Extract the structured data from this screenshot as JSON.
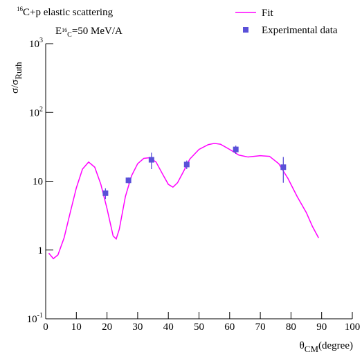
{
  "chart_data": {
    "type": "line",
    "title": {
      "sup": "16",
      "text": "C+p elastic scattering"
    },
    "annotation": {
      "text": "E",
      "sub": "16",
      "subsub": "C",
      "rest": "=50 MeV/A"
    },
    "y_label": {
      "text": "σ/σ",
      "sub": "Ruth"
    },
    "x_label": {
      "text": "θ",
      "sub": "CM",
      "rest": "(degree)"
    },
    "log_y": true,
    "grid": false,
    "legend": "top-right",
    "xlim": [
      0,
      100
    ],
    "xticks": [
      0,
      10,
      20,
      30,
      40,
      50,
      60,
      70,
      80,
      90,
      100
    ],
    "ylim": [
      0.1,
      1000
    ],
    "yticks": [
      {
        "value": 0.1,
        "label": "10",
        "exponent": "-1"
      },
      {
        "value": 1,
        "label": "1"
      },
      {
        "value": 10,
        "label": "10"
      },
      {
        "value": 100,
        "label": "10",
        "exponent": "2"
      },
      {
        "value": 1000,
        "label": "10",
        "exponent": "3"
      }
    ],
    "series": [
      {
        "name": "Fit",
        "type": "line",
        "color": "#ff00ff",
        "x": [
          1,
          2.5,
          4,
          6,
          8,
          10,
          12,
          14,
          16,
          18,
          20,
          22,
          23,
          24,
          26,
          28,
          30,
          32,
          34,
          36,
          38,
          40,
          41.5,
          43,
          45,
          47,
          50,
          53,
          55,
          57,
          60,
          63,
          66,
          70,
          73,
          76,
          79,
          82,
          85,
          87,
          89
        ],
        "values": [
          0.9,
          0.75,
          0.85,
          1.5,
          3.5,
          8,
          15,
          19,
          16,
          9,
          4,
          1.6,
          1.45,
          2,
          6,
          12,
          18,
          21.5,
          22,
          19,
          13,
          9,
          8.2,
          9.5,
          14,
          21,
          29,
          34,
          35.5,
          34.5,
          29,
          24,
          22.5,
          23.5,
          23,
          18,
          11,
          6,
          3.5,
          2.2,
          1.5
        ]
      },
      {
        "name": "Experimental data",
        "type": "scatter",
        "color": "#5a50d8",
        "x": [
          19.5,
          27,
          34.5,
          46,
          62,
          77.5
        ],
        "values": [
          6.7,
          10.3,
          20.5,
          17.5,
          29,
          16
        ],
        "errors": [
          1.2,
          1,
          5.5,
          2.5,
          4,
          6.5
        ]
      }
    ]
  }
}
